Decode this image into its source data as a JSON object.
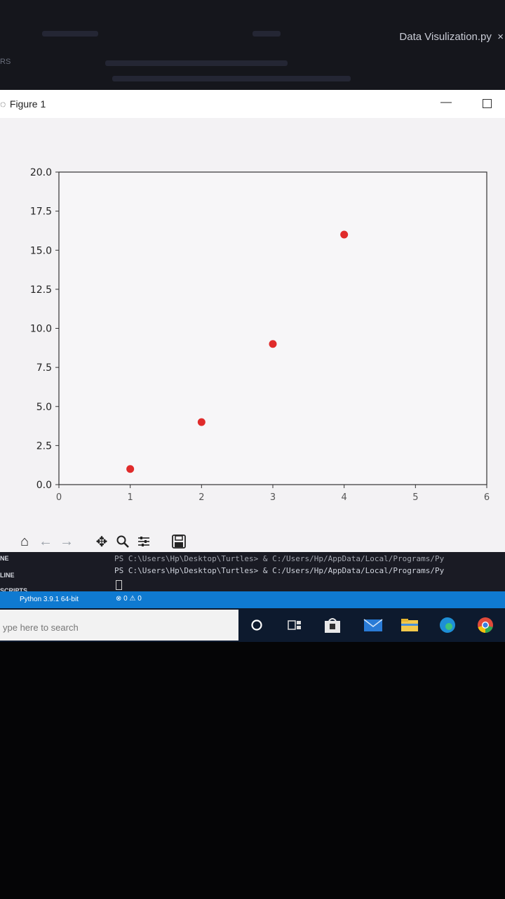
{
  "editor": {
    "tab_title": "Data Visulization.py",
    "side_label": "RS"
  },
  "figure_window": {
    "title": "Figure 1",
    "minimize_glyph": "—",
    "toolbar_icons": [
      "home-icon",
      "back-arrow-icon",
      "forward-arrow-icon",
      "pan-icon",
      "zoom-icon",
      "configure-subplots-icon",
      "save-icon"
    ]
  },
  "chart_data": {
    "type": "scatter",
    "x": [
      1,
      2,
      3,
      4
    ],
    "y": [
      1,
      4,
      9,
      16
    ],
    "xlim": [
      0,
      6
    ],
    "ylim": [
      0,
      20
    ],
    "xticks": [
      "0",
      "1",
      "2",
      "3",
      "4",
      "5",
      "6"
    ],
    "yticks": [
      "0.0",
      "2.5",
      "5.0",
      "7.5",
      "10.0",
      "12.5",
      "15.0",
      "17.5",
      "20.0"
    ],
    "marker_color": "#e02b2b",
    "title": "",
    "xlabel": "",
    "ylabel": "",
    "grid": false
  },
  "terminal": {
    "line1": "PS C:\\Users\\Hp\\Desktop\\Turtles> & C:/Users/Hp/AppData/Local/Programs/Py",
    "line2": "PS C:\\Users\\Hp\\Desktop\\Turtles> & C:/Users/Hp/AppData/Local/Programs/Py"
  },
  "sidebar_labels": {
    "a": "NE",
    "b": "LINE",
    "c": "SCRIPTS"
  },
  "statusbar": {
    "python": "Python 3.9.1 64-bit",
    "problems": "⊗ 0 ⚠ 0"
  },
  "taskbar": {
    "search_placeholder": "ype here to search"
  }
}
